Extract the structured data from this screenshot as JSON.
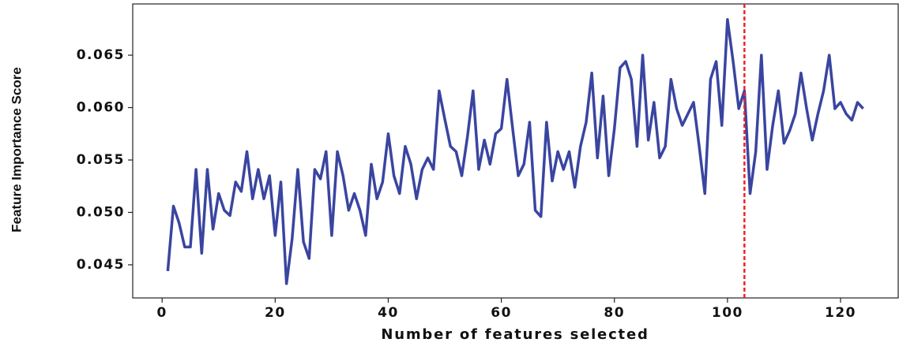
{
  "chart_data": {
    "type": "line",
    "x_label": "Number of features selected",
    "y_label": "Feature Importance Score",
    "x": [
      1,
      2,
      3,
      4,
      5,
      6,
      7,
      8,
      9,
      10,
      11,
      12,
      13,
      14,
      15,
      16,
      17,
      18,
      19,
      20,
      21,
      22,
      23,
      24,
      25,
      26,
      27,
      28,
      29,
      30,
      31,
      32,
      33,
      34,
      35,
      36,
      37,
      38,
      39,
      40,
      41,
      42,
      43,
      44,
      45,
      46,
      47,
      48,
      49,
      50,
      51,
      52,
      53,
      54,
      55,
      56,
      57,
      58,
      59,
      60,
      61,
      62,
      63,
      64,
      65,
      66,
      67,
      68,
      69,
      70,
      71,
      72,
      73,
      74,
      75,
      76,
      77,
      78,
      79,
      80,
      81,
      82,
      83,
      84,
      85,
      86,
      87,
      88,
      89,
      90,
      91,
      92,
      93,
      94,
      95,
      96,
      97,
      98,
      99,
      100,
      101,
      102,
      103,
      104,
      105,
      106,
      107,
      108,
      109,
      110,
      111,
      112,
      113,
      114,
      115,
      116,
      117,
      118,
      119,
      120,
      121,
      122,
      123,
      124
    ],
    "values": [
      0.0444,
      0.0506,
      0.049,
      0.0467,
      0.0467,
      0.0541,
      0.0461,
      0.0541,
      0.0484,
      0.0518,
      0.0502,
      0.0497,
      0.0529,
      0.052,
      0.0558,
      0.0513,
      0.0541,
      0.0513,
      0.0535,
      0.0478,
      0.0529,
      0.0432,
      0.0475,
      0.0541,
      0.0472,
      0.0456,
      0.0541,
      0.0532,
      0.0558,
      0.0478,
      0.0558,
      0.0535,
      0.0502,
      0.0518,
      0.0502,
      0.0478,
      0.0546,
      0.0513,
      0.0529,
      0.0575,
      0.0535,
      0.0518,
      0.0563,
      0.0546,
      0.0513,
      0.0541,
      0.0552,
      0.0541,
      0.0616,
      0.0589,
      0.0563,
      0.0558,
      0.0535,
      0.0572,
      0.0616,
      0.0541,
      0.0569,
      0.0546,
      0.0575,
      0.058,
      0.0627,
      0.058,
      0.0535,
      0.0546,
      0.0586,
      0.0502,
      0.0496,
      0.0586,
      0.053,
      0.0558,
      0.0541,
      0.0558,
      0.0524,
      0.0563,
      0.0586,
      0.0633,
      0.0552,
      0.0611,
      0.0535,
      0.058,
      0.0638,
      0.0644,
      0.0627,
      0.0563,
      0.065,
      0.0569,
      0.0605,
      0.0552,
      0.0563,
      0.0627,
      0.0599,
      0.0583,
      0.0594,
      0.0605,
      0.0563,
      0.0518,
      0.0627,
      0.0644,
      0.0583,
      0.0684,
      0.0644,
      0.0599,
      0.0616,
      0.0518,
      0.0558,
      0.065,
      0.0541,
      0.0583,
      0.0616,
      0.0566,
      0.0578,
      0.0594,
      0.0633,
      0.0599,
      0.0569,
      0.0594,
      0.0616,
      0.065,
      0.0599,
      0.0605,
      0.0594,
      0.0588,
      0.0605,
      0.0599
    ],
    "color": "#3a45a0",
    "xlim": [
      -5.2,
      130.2
    ],
    "ylim": [
      0.04184,
      0.06989
    ],
    "xticks": [
      0,
      20,
      40,
      60,
      80,
      100,
      120
    ],
    "yticks": [
      {
        "value": 0.045,
        "label": "0.045"
      },
      {
        "value": 0.05,
        "label": "0.050"
      },
      {
        "value": 0.055,
        "label": "0.055"
      },
      {
        "value": 0.06,
        "label": "0.060"
      },
      {
        "value": 0.065,
        "label": "0.065"
      }
    ],
    "vline": {
      "x": 103,
      "color": "#e8262a"
    }
  }
}
